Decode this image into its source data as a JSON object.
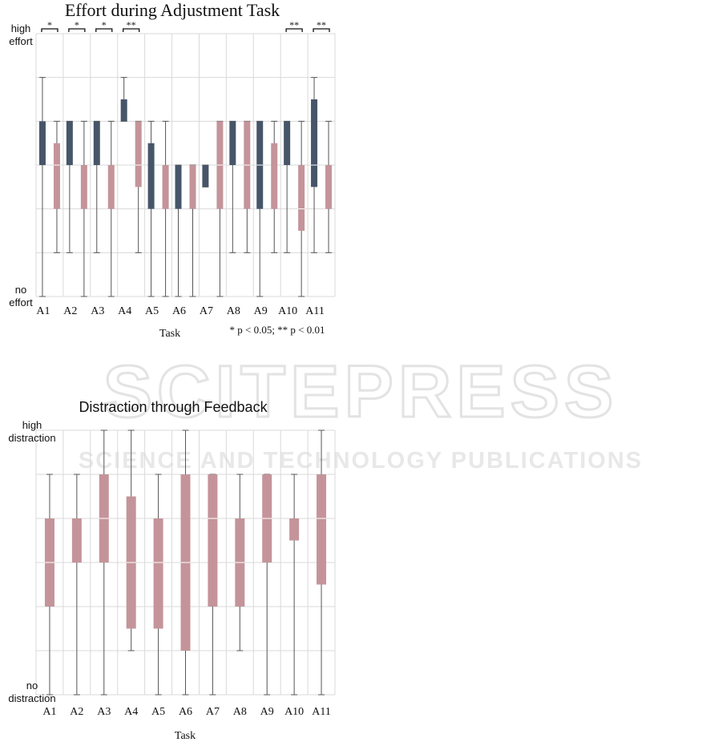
{
  "colors": {
    "group1": "#475569",
    "group2": "#c4949a",
    "grid": "#d9d9d9",
    "whisker": "#555555",
    "watermark": "#e6e6e6"
  },
  "watermark": {
    "main": "SCITEPRESS",
    "sub": "SCIENCE AND TECHNOLOGY PUBLICATIONS"
  },
  "chart_data": [
    {
      "type": "box",
      "title": "Effort during Adjustment Task",
      "xlabel": "Task",
      "ylabel_top": "high effort",
      "ylabel_bottom": "no effort",
      "note": "* p < 0.05; ** p < 0.01",
      "ylim": [
        0,
        6
      ],
      "grid": true,
      "categories": [
        "A1",
        "A2",
        "A3",
        "A4",
        "A5",
        "A6",
        "A7",
        "A8",
        "A9",
        "A10",
        "A11"
      ],
      "significance": [
        "*",
        "*",
        "*",
        "**",
        "",
        "",
        "",
        "",
        "",
        "**",
        "**"
      ],
      "series": [
        {
          "boxes": [
            {
              "min": 0,
              "q1": 3,
              "median": 3,
              "q3": 4,
              "max": 5
            },
            {
              "min": 1,
              "q1": 3,
              "median": 3,
              "q3": 4,
              "max": 4
            },
            {
              "min": 1,
              "q1": 3,
              "median": 3,
              "q3": 4,
              "max": 4
            },
            {
              "min": 4,
              "q1": 4,
              "median": 4,
              "q3": 4.5,
              "max": 5
            },
            {
              "min": 0,
              "q1": 2,
              "median": 2,
              "q3": 3.5,
              "max": 4
            },
            {
              "min": 0,
              "q1": 2,
              "median": 2,
              "q3": 3,
              "max": 3
            },
            {
              "min": 2.5,
              "q1": 2.5,
              "median": 2.5,
              "q3": 3,
              "max": 3
            },
            {
              "min": 1,
              "q1": 3,
              "median": 3,
              "q3": 4,
              "max": 4
            },
            {
              "min": 0,
              "q1": 2,
              "median": 3,
              "q3": 4,
              "max": 4
            },
            {
              "min": 1,
              "q1": 3,
              "median": 3,
              "q3": 4,
              "max": 4
            },
            {
              "min": 1,
              "q1": 2.5,
              "median": 3,
              "q3": 4.5,
              "max": 5
            }
          ]
        },
        {
          "boxes": [
            {
              "min": 1,
              "q1": 2,
              "median": 3,
              "q3": 3.5,
              "max": 4
            },
            {
              "min": 0,
              "q1": 2,
              "median": 2,
              "q3": 3,
              "max": 4
            },
            {
              "min": 0,
              "q1": 2,
              "median": 2,
              "q3": 3,
              "max": 4
            },
            {
              "min": 1,
              "q1": 2.5,
              "median": 3,
              "q3": 4,
              "max": 4
            },
            {
              "min": 0,
              "q1": 2,
              "median": 2,
              "q3": 3,
              "max": 4
            },
            {
              "min": 0,
              "q1": 2,
              "median": 3,
              "q3": 3,
              "max": 3
            },
            {
              "min": 0,
              "q1": 2,
              "median": 3,
              "q3": 4,
              "max": 4
            },
            {
              "min": 1,
              "q1": 2,
              "median": 3,
              "q3": 4,
              "max": 4
            },
            {
              "min": 1,
              "q1": 2,
              "median": 2,
              "q3": 3.5,
              "max": 4
            },
            {
              "min": 0,
              "q1": 1.5,
              "median": 2,
              "q3": 3,
              "max": 4
            },
            {
              "min": 1,
              "q1": 2,
              "median": 2,
              "q3": 3,
              "max": 4
            }
          ]
        }
      ]
    },
    {
      "type": "box",
      "title": "Distraction through Feedback",
      "xlabel": "Task",
      "ylabel_top": "high distraction",
      "ylabel_bottom": "no distraction",
      "ylim": [
        0,
        6
      ],
      "grid": true,
      "categories": [
        "A1",
        "A2",
        "A3",
        "A4",
        "A5",
        "A6",
        "A7",
        "A8",
        "A9",
        "A10",
        "A11"
      ],
      "series": [
        {
          "boxes": [
            {
              "min": 0,
              "q1": 2,
              "median": 3,
              "q3": 4,
              "max": 5
            },
            {
              "min": 0,
              "q1": 3,
              "median": 3,
              "q3": 4,
              "max": 5
            },
            {
              "min": 0,
              "q1": 3,
              "median": 4,
              "q3": 5,
              "max": 6
            },
            {
              "min": 1,
              "q1": 1.5,
              "median": 3,
              "q3": 4.5,
              "max": 6
            },
            {
              "min": 0,
              "q1": 1.5,
              "median": 3,
              "q3": 4,
              "max": 5
            },
            {
              "min": 0,
              "q1": 1,
              "median": 3,
              "q3": 5,
              "max": 6
            },
            {
              "min": 0,
              "q1": 2,
              "median": 4,
              "q3": 5,
              "max": 5
            },
            {
              "min": 1,
              "q1": 2,
              "median": 3,
              "q3": 4,
              "max": 5
            },
            {
              "min": 0,
              "q1": 3,
              "median": 4,
              "q3": 5,
              "max": 5
            },
            {
              "min": 0,
              "q1": 3.5,
              "median": 4,
              "q3": 4,
              "max": 5
            },
            {
              "min": 0,
              "q1": 2.5,
              "median": 4,
              "q3": 5,
              "max": 6
            }
          ]
        }
      ]
    }
  ]
}
